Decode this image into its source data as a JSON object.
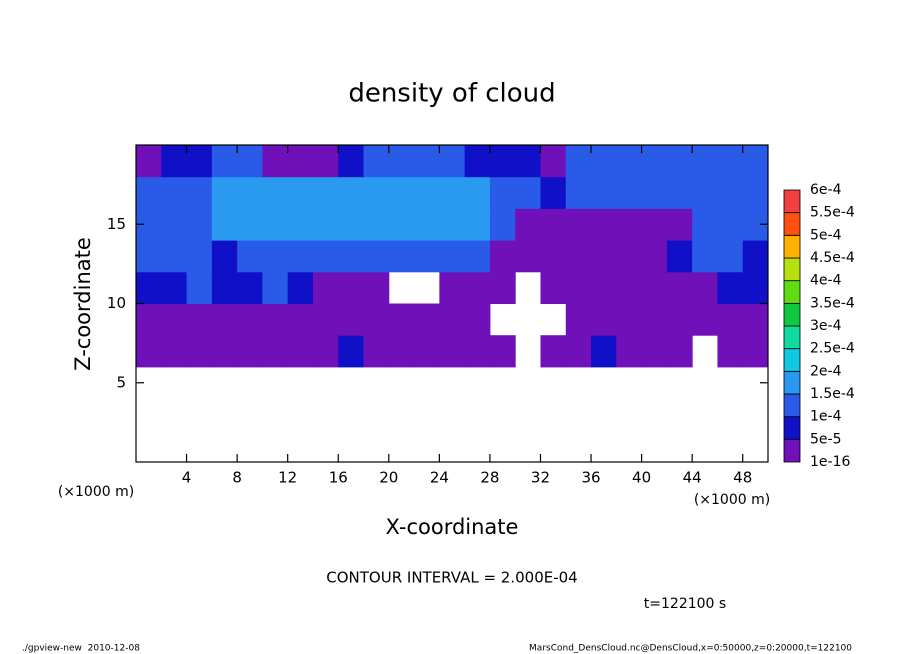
{
  "chart_data": {
    "type": "contour",
    "title": "density of cloud",
    "x_label": "X-coordinate",
    "y_label": "Z-coordinate",
    "x_unit": "(×1000 m)",
    "y_unit": "(×1000 m)",
    "contour_interval": "CONTOUR INTERVAL = 2.000E-04",
    "time_label": "t=122100 s",
    "footer_left": "./gpview-new  2010-12-08",
    "footer_right": "MarsCond_DensCloud.nc@DensCloud,x=0:50000,z=0:20000,t=122100",
    "xlim": [
      0,
      50
    ],
    "ylim": [
      0,
      20
    ],
    "xticks": [
      4,
      8,
      12,
      16,
      20,
      24,
      28,
      32,
      36,
      40,
      44,
      48
    ],
    "yticks": [
      5,
      10,
      15
    ],
    "x": [
      1,
      3,
      5,
      7,
      9,
      11,
      13,
      15,
      17,
      19,
      21,
      23,
      25,
      27,
      29,
      31,
      33,
      35,
      37,
      39,
      41,
      43,
      45,
      47,
      49
    ],
    "y": [
      1,
      3,
      5,
      7,
      9,
      11,
      13,
      15,
      17,
      19
    ],
    "z": [
      [
        null,
        null,
        null,
        null,
        null,
        null,
        null,
        null,
        null,
        null,
        null,
        null,
        null,
        null,
        null,
        null,
        null,
        null,
        null,
        null,
        null,
        null,
        null,
        null,
        null
      ],
      [
        null,
        null,
        null,
        null,
        null,
        null,
        null,
        null,
        null,
        null,
        null,
        null,
        null,
        null,
        null,
        null,
        null,
        null,
        null,
        null,
        null,
        null,
        null,
        null,
        null
      ],
      [
        null,
        null,
        null,
        null,
        null,
        null,
        null,
        null,
        null,
        null,
        null,
        null,
        null,
        null,
        null,
        null,
        null,
        null,
        null,
        null,
        null,
        null,
        null,
        null,
        null
      ],
      [
        2e-05,
        2e-05,
        2e-05,
        2e-05,
        2e-05,
        2e-05,
        2e-05,
        2e-05,
        7e-05,
        2e-05,
        2e-05,
        2e-05,
        2e-05,
        2e-05,
        2e-05,
        null,
        2e-05,
        2e-05,
        7e-05,
        2e-05,
        2e-05,
        2e-05,
        null,
        2e-05,
        2e-05
      ],
      [
        2e-05,
        2e-05,
        2e-05,
        2e-05,
        2e-05,
        2e-05,
        2e-05,
        2e-05,
        2e-05,
        2e-05,
        2e-05,
        2e-05,
        2e-05,
        2e-05,
        null,
        null,
        null,
        2e-05,
        2e-05,
        2e-05,
        2e-05,
        2e-05,
        2e-05,
        2e-05,
        2e-05
      ],
      [
        7e-05,
        7e-05,
        0.00012,
        7e-05,
        7e-05,
        0.00012,
        7e-05,
        2e-05,
        2e-05,
        2e-05,
        null,
        null,
        2e-05,
        2e-05,
        2e-05,
        null,
        2e-05,
        2e-05,
        2e-05,
        2e-05,
        2e-05,
        2e-05,
        2e-05,
        7e-05,
        7e-05
      ],
      [
        0.00012,
        0.00012,
        0.00012,
        7e-05,
        0.00012,
        0.00012,
        0.00012,
        0.00012,
        0.00012,
        0.00012,
        0.00012,
        0.00012,
        0.00012,
        0.00012,
        2e-05,
        2e-05,
        2e-05,
        2e-05,
        2e-05,
        2e-05,
        2e-05,
        7e-05,
        0.00012,
        0.00012,
        7e-05
      ],
      [
        0.00012,
        0.00012,
        0.00012,
        0.00016,
        0.00016,
        0.00016,
        0.00016,
        0.00016,
        0.00016,
        0.00016,
        0.00016,
        0.00016,
        0.00016,
        0.00016,
        0.00012,
        2e-05,
        2e-05,
        2e-05,
        2e-05,
        2e-05,
        2e-05,
        2e-05,
        0.00012,
        0.00012,
        0.00012
      ],
      [
        0.00012,
        0.00012,
        0.00012,
        0.00016,
        0.00016,
        0.00016,
        0.00016,
        0.00016,
        0.00016,
        0.00016,
        0.00016,
        0.00016,
        0.00016,
        0.00016,
        0.00012,
        0.00012,
        7e-05,
        0.00012,
        0.00012,
        0.00012,
        0.00012,
        0.00012,
        0.00012,
        0.00012,
        0.00012
      ],
      [
        2e-05,
        7e-05,
        7e-05,
        0.00012,
        0.00012,
        2e-05,
        2e-05,
        2e-05,
        7e-05,
        0.00012,
        0.00012,
        0.00012,
        0.00012,
        7e-05,
        7e-05,
        7e-05,
        2e-05,
        0.00012,
        0.00012,
        0.00012,
        0.00012,
        0.00012,
        0.00012,
        0.00012,
        0.00012
      ]
    ],
    "colorbar": {
      "ticks": [
        1e-16,
        {
          "value": 5e-05,
          "label": "5e-5"
        },
        {
          "value": 0.0001,
          "label": "1e-4"
        },
        {
          "value": 0.00015,
          "label": "1.5e-4"
        },
        {
          "value": 0.0002,
          "label": "2e-4"
        },
        {
          "value": 0.00025,
          "label": "2.5e-4"
        },
        {
          "value": 0.0003,
          "label": "3e-4"
        },
        {
          "value": 0.00035,
          "label": "3.5e-4"
        },
        {
          "value": 0.0004,
          "label": "4e-4"
        },
        {
          "value": 0.00045,
          "label": "4.5e-4"
        },
        {
          "value": 0.0005,
          "label": "5e-4"
        },
        {
          "value": 0.00055,
          "label": "5.5e-4"
        },
        {
          "value": 0.0006,
          "label": "6e-4"
        }
      ],
      "colors": [
        "#7010b8",
        "#1010c8",
        "#2a5ae8",
        "#2a9af0",
        "#10c8e0",
        "#10dca0",
        "#10c840",
        "#60dc10",
        "#b8e010",
        "#ffb000",
        "#ff5010",
        "#f04040"
      ]
    }
  }
}
